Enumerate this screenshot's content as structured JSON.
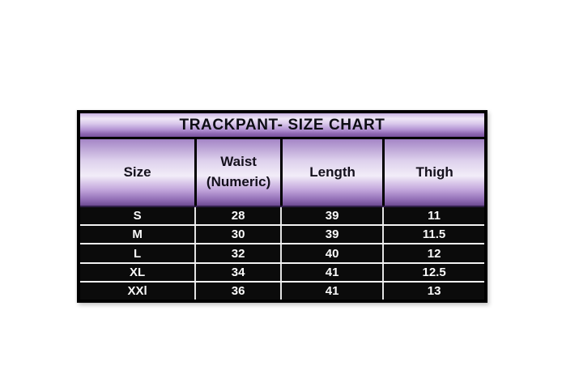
{
  "table": {
    "title": "TRACKPANT- SIZE CHART",
    "columns": [
      "Size",
      "Waist (Numeric)",
      "Length",
      "Thigh"
    ],
    "rows": [
      [
        "S",
        "28",
        "39",
        "11"
      ],
      [
        "M",
        "30",
        "39",
        "11.5"
      ],
      [
        "L",
        "32",
        "40",
        "12"
      ],
      [
        "XL",
        "34",
        "41",
        "12.5"
      ],
      [
        "XXl",
        "36",
        "41",
        "13"
      ]
    ]
  },
  "chart_data": {
    "type": "table",
    "title": "TRACKPANT- SIZE CHART",
    "columns": [
      "Size",
      "Waist (Numeric)",
      "Length",
      "Thigh"
    ],
    "rows": [
      [
        "S",
        28,
        39,
        11
      ],
      [
        "M",
        30,
        39,
        11.5
      ],
      [
        "L",
        32,
        40,
        12
      ],
      [
        "XL",
        34,
        41,
        12.5
      ],
      [
        "XXl",
        36,
        41,
        13
      ]
    ]
  },
  "colors": {
    "border": "#000000",
    "header_purple_dark": "#6e4b92",
    "header_purple_light": "#f2edf8",
    "row_background": "#0b0b0b",
    "row_text": "#fafafa",
    "row_separator": "#f2f2f2"
  }
}
